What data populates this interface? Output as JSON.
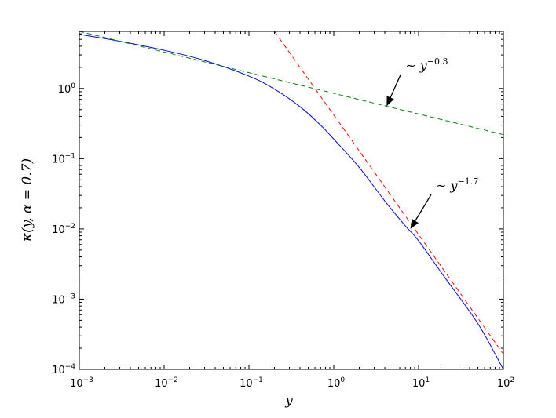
{
  "chart_data": {
    "type": "line",
    "title": "",
    "xlabel": "y",
    "ylabel": "κ(y, α = 0.7)",
    "xscale": "log",
    "yscale": "log",
    "xlim": [
      0.001,
      100
    ],
    "ylim": [
      0.0001,
      6.5
    ],
    "grid": false,
    "legend": "none",
    "x_ticks": [
      {
        "base": "10",
        "exp": "−3",
        "value": 0.001
      },
      {
        "base": "10",
        "exp": "−2",
        "value": 0.01
      },
      {
        "base": "10",
        "exp": "−1",
        "value": 0.1
      },
      {
        "base": "10",
        "exp": "0",
        "value": 1
      },
      {
        "base": "10",
        "exp": "1",
        "value": 10
      },
      {
        "base": "10",
        "exp": "2",
        "value": 100
      }
    ],
    "y_ticks": [
      {
        "base": "10",
        "exp": "−4",
        "value": 0.0001
      },
      {
        "base": "10",
        "exp": "−3",
        "value": 0.001
      },
      {
        "base": "10",
        "exp": "−2",
        "value": 0.01
      },
      {
        "base": "10",
        "exp": "−1",
        "value": 0.1
      },
      {
        "base": "10",
        "exp": "0",
        "value": 1
      }
    ],
    "series": [
      {
        "color": "#0000ff",
        "style": "solid",
        "x": [
          0.001,
          0.003,
          0.01,
          0.03,
          0.1,
          0.2,
          0.4,
          0.7,
          1,
          2,
          4,
          7,
          10,
          20,
          50,
          100
        ],
        "y": [
          5.9,
          4.7,
          3.5,
          2.5,
          1.5,
          0.98,
          0.55,
          0.3,
          0.19,
          0.075,
          0.025,
          0.011,
          0.0068,
          0.0021,
          0.00045,
          0.0001
        ]
      },
      {
        "color": "#008000",
        "style": "dashed",
        "x": [
          0.001,
          100
        ],
        "y": [
          6.5,
          0.22
        ]
      },
      {
        "color": "#ff0000",
        "style": "dashed",
        "x": [
          0.2,
          100
        ],
        "y": [
          6.5,
          0.000165
        ]
      }
    ],
    "annotations": [
      {
        "prefix": "∼ ",
        "base": "y",
        "exp": "−0.3",
        "arrow_to": [
          4.2,
          0.56
        ],
        "text_at": [
          7,
          1.85
        ]
      },
      {
        "prefix": "∼ ",
        "base": "y",
        "exp": "−1.7",
        "arrow_to": [
          8,
          0.01
        ],
        "text_at": [
          16,
          0.036
        ]
      }
    ]
  }
}
